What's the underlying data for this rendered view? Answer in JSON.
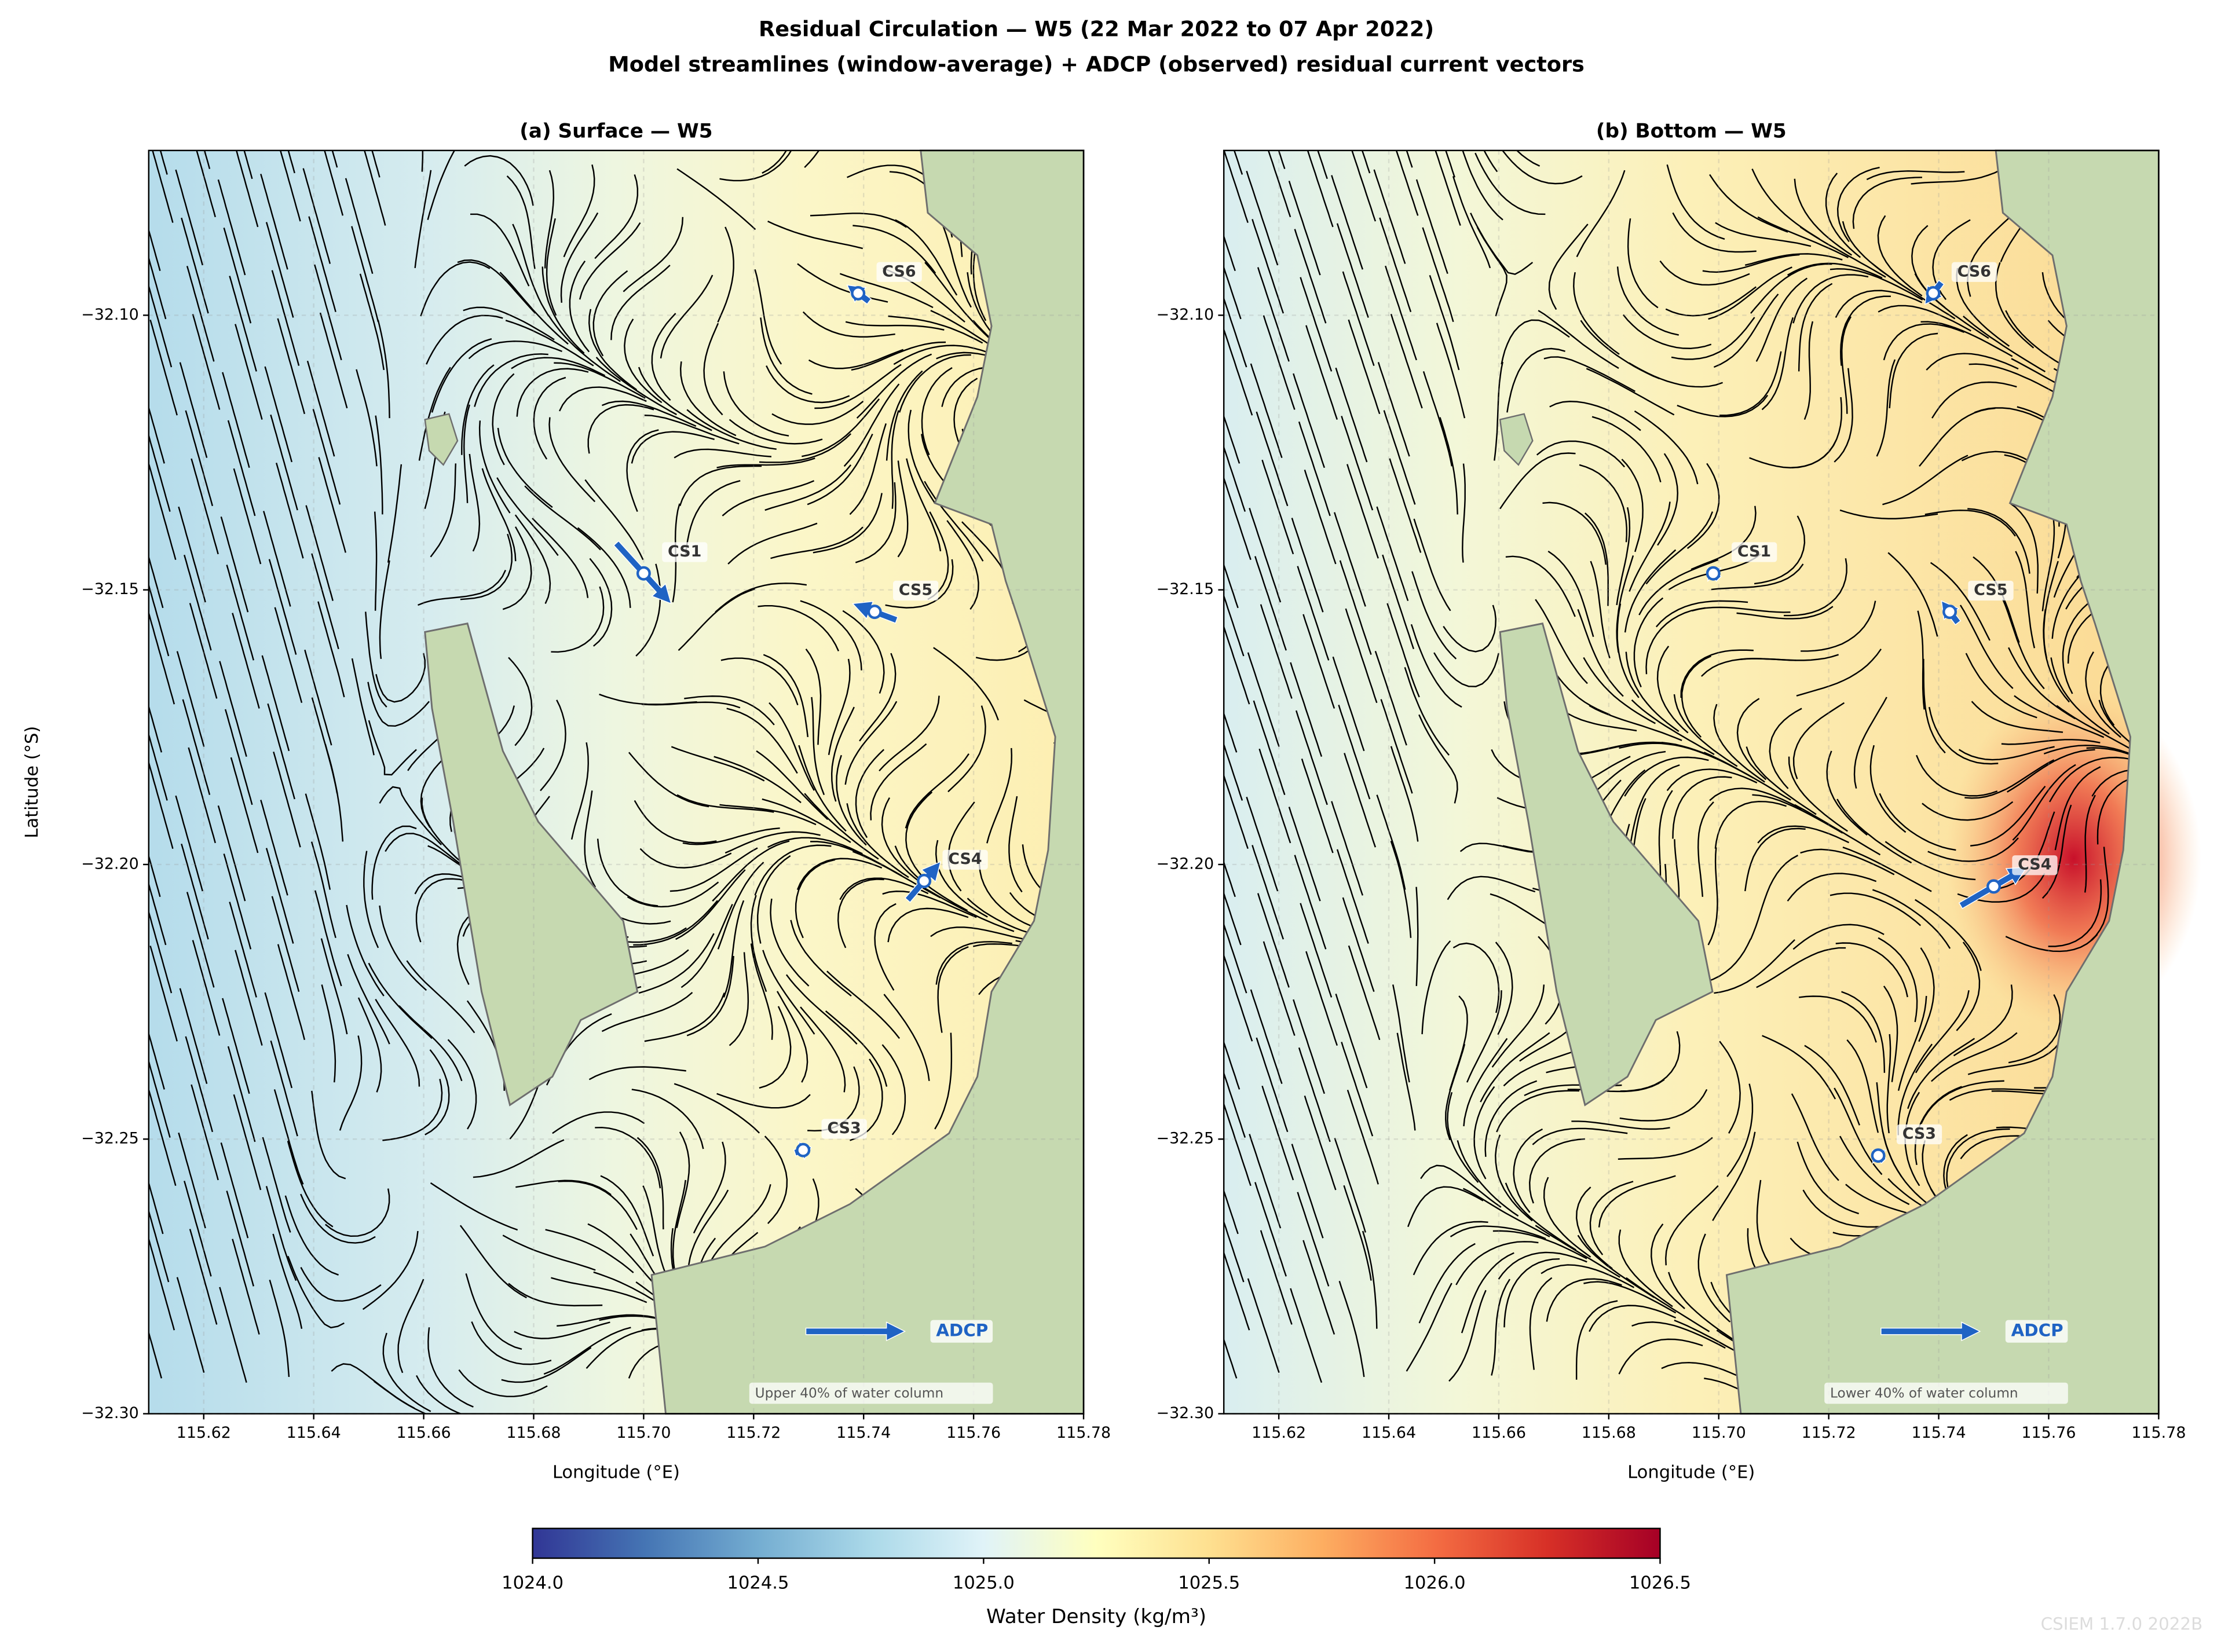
{
  "title": "Residual Circulation — W5  (22 Mar 2022 to 07 Apr 2022)",
  "subtitle": "Model streamlines (window-average) + ADCP (observed) residual current vectors",
  "chart_data": [
    {
      "type": "map",
      "title": "(a) Surface — W5",
      "xlabel": "Longitude (°E)",
      "ylabel": "Latitude (°S)",
      "xlim": [
        115.61,
        115.78
      ],
      "ylim": [
        -32.3,
        -32.07
      ],
      "xticks": [
        115.62,
        115.64,
        115.66,
        115.68,
        {
          "value": 115.7,
          "label": "115.70"
        },
        115.72,
        115.74,
        115.76,
        115.78
      ],
      "yticks": [
        {
          "value": -32.1,
          "label": "−32.10"
        },
        {
          "value": -32.15,
          "label": "−32.15"
        },
        {
          "value": -32.2,
          "label": "−32.20"
        },
        {
          "value": -32.25,
          "label": "−32.25"
        },
        {
          "value": -32.3,
          "label": "−32.30"
        }
      ],
      "grid": true,
      "note": "Upper 40% of water column",
      "arrow_color": "#1f63c4",
      "stations": [
        {
          "name": "CS6",
          "lon": 115.739,
          "lat": -32.096,
          "vector": [
            -0.004,
            0.003
          ]
        },
        {
          "name": "CS1",
          "lon": 115.7,
          "lat": -32.147,
          "vector": [
            0.01,
            -0.011
          ]
        },
        {
          "name": "CS5",
          "lon": 115.742,
          "lat": -32.154,
          "vector": [
            -0.008,
            0.003
          ]
        },
        {
          "name": "CS4",
          "lon": 115.751,
          "lat": -32.203,
          "vector": [
            0.006,
            0.007
          ]
        },
        {
          "name": "CS3",
          "lon": 115.729,
          "lat": -32.252,
          "vector": [
            0.003,
            0.001
          ]
        }
      ],
      "key": {
        "label": "ADCP",
        "lon": 115.7295,
        "lat": -32.285,
        "vector": [
          0.018,
          0
        ]
      }
    },
    {
      "type": "map",
      "title": "(b) Bottom — W5",
      "xlabel": "Longitude (°E)",
      "xlim": [
        115.61,
        115.78
      ],
      "ylim": [
        -32.3,
        -32.07
      ],
      "xticks": [
        115.62,
        115.64,
        115.66,
        115.68,
        {
          "value": 115.7,
          "label": "115.70"
        },
        115.72,
        115.74,
        115.76,
        115.78
      ],
      "yticks": [
        {
          "value": -32.1,
          "label": "−32.10"
        },
        {
          "value": -32.15,
          "label": "−32.15"
        },
        {
          "value": -32.2,
          "label": "−32.20"
        },
        {
          "value": -32.25,
          "label": "−32.25"
        },
        {
          "value": -32.3,
          "label": "−32.30"
        }
      ],
      "grid": true,
      "note": "Lower 40% of water column",
      "arrow_color": "#1f63c4",
      "stations": [
        {
          "name": "CS6",
          "lon": 115.739,
          "lat": -32.096,
          "vector": [
            -0.003,
            -0.004
          ]
        },
        {
          "name": "CS1",
          "lon": 115.699,
          "lat": -32.147,
          "vector": [
            -0.002,
            0.002
          ]
        },
        {
          "name": "CS5",
          "lon": 115.742,
          "lat": -32.154,
          "vector": [
            -0.003,
            0.004
          ]
        },
        {
          "name": "CS4",
          "lon": 115.75,
          "lat": -32.204,
          "vector": [
            0.012,
            0.007
          ]
        },
        {
          "name": "CS3",
          "lon": 115.729,
          "lat": -32.253,
          "vector": [
            -0.002,
            0.002
          ]
        }
      ],
      "key": {
        "label": "ADCP",
        "lon": 115.7295,
        "lat": -32.285,
        "vector": [
          0.018,
          0
        ]
      }
    }
  ],
  "colorbar": {
    "label": "Water Density (kg/m³)",
    "lim": [
      1024.0,
      1026.5
    ],
    "ticks": [
      {
        "value": 1024.0,
        "label": "1024.0"
      },
      1024.5,
      {
        "value": 1025.0,
        "label": "1025.0"
      },
      1025.5,
      {
        "value": 1026.0,
        "label": "1026.0"
      },
      1026.5
    ],
    "colormap": [
      "#313695",
      "#4575b4",
      "#74add1",
      "#abd9e9",
      "#e0f3f8",
      "#ffffbf",
      "#fee090",
      "#fdae61",
      "#f46d43",
      "#d73027",
      "#a50026"
    ]
  },
  "watermark": "CSIEM 1.7.0 2022B"
}
